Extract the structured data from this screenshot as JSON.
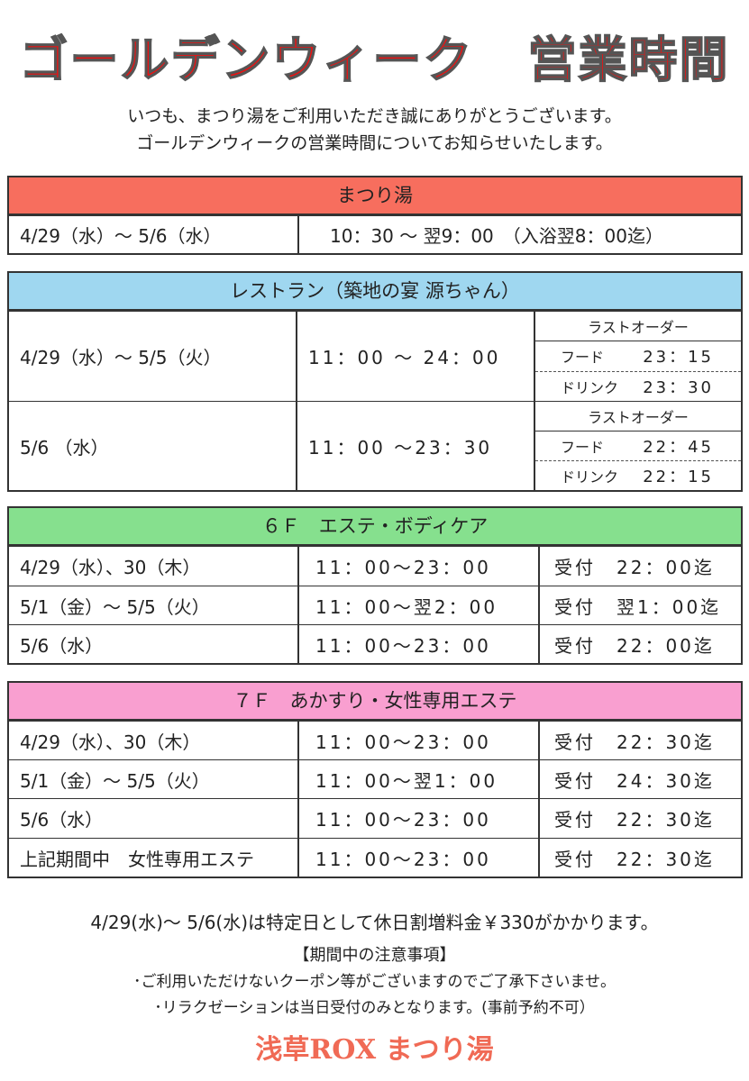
{
  "title": {
    "left": "ゴールデンウィーク",
    "right": "営業時間"
  },
  "intro": {
    "line1": "いつも、まつり湯をご利用いただき誠にありがとうございます。",
    "line2": "ゴールデンウィークの営業時間についてお知らせいたします。"
  },
  "colors": {
    "title": "#ee1111",
    "matsuriyu": "#f76e5e",
    "restaurant": "#9fd7f0",
    "esthe6f": "#86e08e",
    "esthe7f": "#f99fd0"
  },
  "matsuriyu": {
    "header": "まつり湯",
    "rows": [
      {
        "period": "4/29（水）～ 5/6（水）",
        "hours": "10：30 ～ 翌9：00　（入浴翌8：00迄）"
      }
    ]
  },
  "restaurant": {
    "header": "レストラン（築地の宴 源ちゃん）",
    "rows": [
      {
        "period": "4/29（水）～ 5/5（火）",
        "hours": "11：00 ～ 24：00",
        "last_order_label": "ラストオーダー",
        "food_label": "フード",
        "food": "23：15",
        "drink_label": "ドリンク",
        "drink": "23：30"
      },
      {
        "period": "5/6 （水）",
        "hours": "11：00 ～23：30",
        "last_order_label": "ラストオーダー",
        "food_label": "フード",
        "food": "22：45",
        "drink_label": "ドリンク",
        "drink": "22：15"
      }
    ]
  },
  "esthe6f": {
    "header": "６Ｆ　エステ・ボディケア",
    "rows": [
      {
        "period": "4/29（水）、30（木）",
        "hours": "11：00～23：00",
        "reception": "受付　22：00迄"
      },
      {
        "period": "5/1（金）～ 5/5（火）",
        "hours": "11：00～翌2：00",
        "reception": "受付　翌1：00迄"
      },
      {
        "period": "5/6（水）",
        "hours": "11：00～23：00",
        "reception": "受付　22：00迄"
      }
    ]
  },
  "esthe7f": {
    "header": "７Ｆ　あかすり・女性専用エステ",
    "rows": [
      {
        "period": "4/29（水）、30（木）",
        "hours": "11：00～23：00",
        "reception": "受付　22：30迄"
      },
      {
        "period": "5/1（金）～ 5/5（火）",
        "hours": "11：00～翌1：00",
        "reception": "受付　24：30迄"
      },
      {
        "period": "5/6（水）",
        "hours": "11：00～23：00",
        "reception": "受付　22：30迄"
      },
      {
        "period": "上記期間中　女性専用エステ",
        "hours": "11：00～23：00",
        "reception": "受付　22：30迄"
      }
    ]
  },
  "notes": {
    "surcharge": "4/29(水)～ 5/6(水)は特定日として休日割増料金￥330がかかります。",
    "caution_title": "【期間中の注意事項】",
    "caution1": "･ご利用いただけないクーポン等がございますのでご了承下さいませ。",
    "caution2": "･リラクゼーションは当日受付のみとなります。(事前予約不可）"
  },
  "logo": "浅草ROX まつり湯"
}
